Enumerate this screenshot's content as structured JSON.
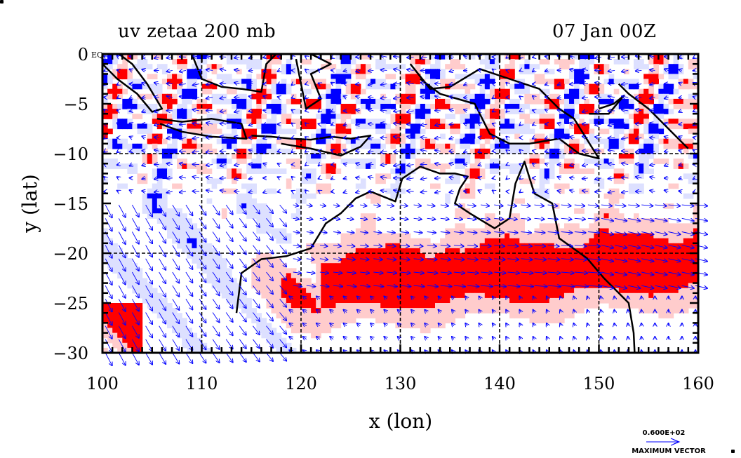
{
  "figure": {
    "title_left": "uv zetaa 200 mb",
    "title_right": "07 Jan 00Z",
    "equator_label": "EQ"
  },
  "axes": {
    "x_label": "x (lon)",
    "y_label": "y (lat)",
    "x_ticks": [
      "100",
      "110",
      "120",
      "130",
      "140",
      "150",
      "160"
    ],
    "y_ticks": [
      "0",
      "−5",
      "−10",
      "−15",
      "−20",
      "−25",
      "−30"
    ],
    "x_range": [
      100,
      160
    ],
    "y_range": [
      -30,
      0
    ],
    "grid_lon": [
      110,
      120,
      130,
      140,
      150
    ],
    "grid_lat": [
      -10,
      -20
    ]
  },
  "legend": {
    "vector_value": "0.600E+02",
    "vector_caption": "MAXIMUM VECTOR",
    "vector_icon": "arrow-right-icon"
  },
  "colors": {
    "positive_contour": "#ff0000",
    "positive_fill": "#ffcccc",
    "negative_contour": "#0000ff",
    "negative_fill": "#dde0ff",
    "vector": "#0000ff",
    "coastline": "#000000",
    "frame": "#000000"
  },
  "fields": {
    "contour_variable": "zetaa",
    "vector_variable": "uv",
    "level": "200 mb",
    "time": "07 Jan 00Z"
  }
}
